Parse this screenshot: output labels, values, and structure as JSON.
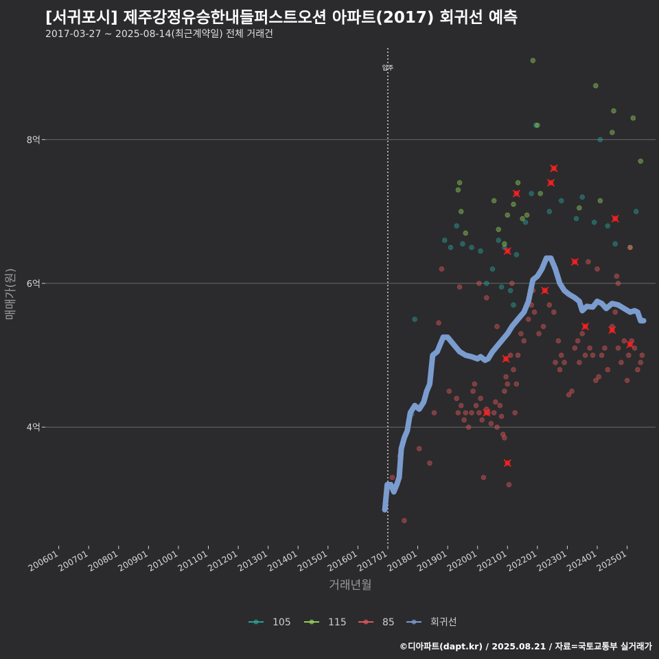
{
  "title": "[서귀포시] 제주강정유승한내들퍼스트오션 아파트(2017) 회귀선 예측",
  "subtitle": "2017-03-27 ~ 2025-08-14(최근계약일) 전체 거래건",
  "credit": "©디아파트(dapt.kr) / 2025.08.21 / 자료=국토교통부 실거래가",
  "chart_data": {
    "type": "scatter",
    "xlabel": "거래년월",
    "ylabel": "매매가(원)",
    "xlim": [
      2005.55,
      2025.95
    ],
    "ylim": [
      2.35,
      9.35
    ],
    "y_ticks": [
      {
        "value": 4,
        "label": "4억"
      },
      {
        "value": 6,
        "label": "6억"
      },
      {
        "value": 8,
        "label": "8억"
      }
    ],
    "x_ticks": [
      {
        "value": 2006,
        "label": "200601"
      },
      {
        "value": 2007,
        "label": "200701"
      },
      {
        "value": 2008,
        "label": "200801"
      },
      {
        "value": 2009,
        "label": "200901"
      },
      {
        "value": 2010,
        "label": "201001"
      },
      {
        "value": 2011,
        "label": "201101"
      },
      {
        "value": 2012,
        "label": "201201"
      },
      {
        "value": 2013,
        "label": "201301"
      },
      {
        "value": 2014,
        "label": "201401"
      },
      {
        "value": 2015,
        "label": "201501"
      },
      {
        "value": 2016,
        "label": "201601"
      },
      {
        "value": 2017,
        "label": "201701"
      },
      {
        "value": 2018,
        "label": "201801"
      },
      {
        "value": 2019,
        "label": "201901"
      },
      {
        "value": 2020,
        "label": "202001"
      },
      {
        "value": 2021,
        "label": "202101"
      },
      {
        "value": 2022,
        "label": "202201"
      },
      {
        "value": 2023,
        "label": "202301"
      },
      {
        "value": 2024,
        "label": "202401"
      },
      {
        "value": 2025,
        "label": "202501"
      }
    ],
    "annotation": {
      "x": 2017.0,
      "label": "입주"
    },
    "colors": {
      "105": "#2aa198",
      "115": "#8fd15a",
      "85": "#e0585a",
      "regression": "#7b9ccf",
      "highlight": "#ff2020"
    },
    "legend": [
      {
        "name": "105",
        "color": "#2aa198"
      },
      {
        "name": "115",
        "color": "#8fd15a"
      },
      {
        "name": "85",
        "color": "#e0585a"
      },
      {
        "name": "회귀선",
        "color": "#7b9ccf"
      }
    ],
    "series": [
      {
        "name": "105",
        "points": [
          [
            2017.8,
            4.18
          ],
          [
            2017.9,
            5.5
          ],
          [
            2018.9,
            6.6
          ],
          [
            2019.1,
            6.5
          ],
          [
            2019.3,
            6.8
          ],
          [
            2019.5,
            6.55
          ],
          [
            2019.8,
            6.5
          ],
          [
            2020.1,
            6.45
          ],
          [
            2020.3,
            6.0
          ],
          [
            2020.5,
            6.2
          ],
          [
            2020.7,
            6.6
          ],
          [
            2020.9,
            6.5
          ],
          [
            2021.1,
            5.9
          ],
          [
            2021.3,
            6.4
          ],
          [
            2021.6,
            6.85
          ],
          [
            2021.8,
            7.25
          ],
          [
            2021.95,
            8.2
          ],
          [
            2022.4,
            7.0
          ],
          [
            2022.8,
            7.15
          ],
          [
            2023.3,
            6.9
          ],
          [
            2023.5,
            7.2
          ],
          [
            2023.9,
            6.85
          ],
          [
            2024.1,
            8.0
          ],
          [
            2024.35,
            6.8
          ],
          [
            2024.6,
            6.55
          ],
          [
            2025.3,
            7.0
          ],
          [
            2021.2,
            5.7
          ],
          [
            2020.8,
            5.95
          ]
        ]
      },
      {
        "name": "115",
        "points": [
          [
            2017.75,
            4.2
          ],
          [
            2019.35,
            7.3
          ],
          [
            2019.45,
            7.0
          ],
          [
            2019.6,
            6.7
          ],
          [
            2020.55,
            7.15
          ],
          [
            2020.7,
            6.75
          ],
          [
            2020.9,
            6.55
          ],
          [
            2021.0,
            6.95
          ],
          [
            2021.2,
            7.1
          ],
          [
            2021.35,
            7.4
          ],
          [
            2021.5,
            6.9
          ],
          [
            2022.0,
            8.2
          ],
          [
            2022.1,
            7.25
          ],
          [
            2023.4,
            7.05
          ],
          [
            2023.95,
            8.75
          ],
          [
            2024.55,
            8.4
          ],
          [
            2024.5,
            8.1
          ],
          [
            2025.2,
            8.3
          ],
          [
            2025.45,
            7.7
          ],
          [
            2025.1,
            6.5
          ],
          [
            2021.85,
            9.1
          ],
          [
            2024.1,
            7.15
          ],
          [
            2019.4,
            7.4
          ],
          [
            2021.65,
            6.95
          ]
        ]
      },
      {
        "name": "85",
        "points": [
          [
            2016.9,
            2.85
          ],
          [
            2017.15,
            3.3
          ],
          [
            2017.3,
            3.2
          ],
          [
            2017.4,
            3.6
          ],
          [
            2017.55,
            2.7
          ],
          [
            2018.05,
            3.7
          ],
          [
            2018.4,
            3.5
          ],
          [
            2018.55,
            4.2
          ],
          [
            2018.7,
            5.45
          ],
          [
            2018.8,
            6.2
          ],
          [
            2019.05,
            4.5
          ],
          [
            2019.3,
            4.4
          ],
          [
            2019.35,
            4.2
          ],
          [
            2019.45,
            4.3
          ],
          [
            2019.55,
            4.1
          ],
          [
            2019.6,
            4.2
          ],
          [
            2019.7,
            4.0
          ],
          [
            2019.8,
            4.2
          ],
          [
            2019.85,
            4.5
          ],
          [
            2019.95,
            4.3
          ],
          [
            2020.05,
            4.2
          ],
          [
            2020.1,
            4.4
          ],
          [
            2020.15,
            4.1
          ],
          [
            2020.2,
            3.3
          ],
          [
            2020.3,
            4.25
          ],
          [
            2020.35,
            4.2
          ],
          [
            2020.45,
            4.05
          ],
          [
            2020.55,
            4.2
          ],
          [
            2020.6,
            4.35
          ],
          [
            2020.65,
            4.0
          ],
          [
            2020.75,
            4.3
          ],
          [
            2020.8,
            4.15
          ],
          [
            2020.85,
            3.9
          ],
          [
            2020.9,
            4.5
          ],
          [
            2020.95,
            4.7
          ],
          [
            2021.0,
            4.6
          ],
          [
            2021.05,
            3.2
          ],
          [
            2021.1,
            5.0
          ],
          [
            2021.2,
            4.8
          ],
          [
            2021.25,
            4.2
          ],
          [
            2021.3,
            4.6
          ],
          [
            2021.35,
            5.0
          ],
          [
            2021.45,
            5.3
          ],
          [
            2021.55,
            5.2
          ],
          [
            2021.7,
            5.5
          ],
          [
            2021.8,
            5.7
          ],
          [
            2021.9,
            5.6
          ],
          [
            2022.05,
            5.3
          ],
          [
            2022.2,
            5.4
          ],
          [
            2022.4,
            5.7
          ],
          [
            2022.55,
            5.6
          ],
          [
            2022.6,
            4.9
          ],
          [
            2022.7,
            5.2
          ],
          [
            2022.75,
            4.8
          ],
          [
            2022.8,
            5.0
          ],
          [
            2022.9,
            4.9
          ],
          [
            2023.05,
            4.45
          ],
          [
            2023.15,
            4.5
          ],
          [
            2023.25,
            5.1
          ],
          [
            2023.35,
            5.2
          ],
          [
            2023.4,
            4.9
          ],
          [
            2023.5,
            5.3
          ],
          [
            2023.6,
            5.0
          ],
          [
            2023.75,
            5.1
          ],
          [
            2023.85,
            5.0
          ],
          [
            2023.95,
            4.65
          ],
          [
            2024.05,
            4.7
          ],
          [
            2024.15,
            5.0
          ],
          [
            2024.25,
            5.1
          ],
          [
            2024.35,
            4.8
          ],
          [
            2024.5,
            5.4
          ],
          [
            2024.6,
            5.6
          ],
          [
            2024.7,
            5.1
          ],
          [
            2024.8,
            4.9
          ],
          [
            2024.9,
            5.2
          ],
          [
            2025.0,
            4.65
          ],
          [
            2025.05,
            5.0
          ],
          [
            2025.15,
            5.2
          ],
          [
            2025.25,
            5.1
          ],
          [
            2025.35,
            4.8
          ],
          [
            2025.45,
            4.9
          ],
          [
            2025.5,
            5.0
          ],
          [
            2020.05,
            6.0
          ],
          [
            2020.3,
            5.8
          ],
          [
            2021.15,
            6.0
          ],
          [
            2022.25,
            6.3
          ],
          [
            2023.7,
            6.3
          ],
          [
            2024.0,
            6.2
          ],
          [
            2024.65,
            6.1
          ],
          [
            2025.1,
            6.5
          ],
          [
            2019.4,
            5.95
          ],
          [
            2020.65,
            5.4
          ],
          [
            2021.85,
            5.9
          ],
          [
            2024.7,
            6.0
          ],
          [
            2020.9,
            3.85
          ],
          [
            2019.9,
            4.6
          ]
        ]
      }
    ],
    "highlights": [
      [
        2020.3,
        4.2
      ],
      [
        2020.95,
        4.95
      ],
      [
        2021.0,
        6.45
      ],
      [
        2021.0,
        3.5
      ],
      [
        2021.3,
        7.25
      ],
      [
        2022.25,
        5.9
      ],
      [
        2022.45,
        7.4
      ],
      [
        2022.55,
        7.6
      ],
      [
        2023.25,
        6.3
      ],
      [
        2023.6,
        5.4
      ],
      [
        2024.5,
        5.35
      ],
      [
        2024.6,
        6.9
      ],
      [
        2025.1,
        5.15
      ]
    ],
    "regression": [
      [
        2016.9,
        2.85
      ],
      [
        2016.98,
        3.2
      ],
      [
        2017.1,
        3.2
      ],
      [
        2017.2,
        3.1
      ],
      [
        2017.3,
        3.2
      ],
      [
        2017.38,
        3.3
      ],
      [
        2017.45,
        3.7
      ],
      [
        2017.55,
        3.85
      ],
      [
        2017.65,
        3.95
      ],
      [
        2017.75,
        4.2
      ],
      [
        2017.9,
        4.3
      ],
      [
        2018.05,
        4.25
      ],
      [
        2018.2,
        4.35
      ],
      [
        2018.3,
        4.5
      ],
      [
        2018.4,
        4.6
      ],
      [
        2018.5,
        5.0
      ],
      [
        2018.65,
        5.05
      ],
      [
        2018.85,
        5.25
      ],
      [
        2019.0,
        5.25
      ],
      [
        2019.2,
        5.15
      ],
      [
        2019.4,
        5.05
      ],
      [
        2019.6,
        5.0
      ],
      [
        2019.8,
        4.98
      ],
      [
        2020.0,
        4.95
      ],
      [
        2020.1,
        4.98
      ],
      [
        2020.25,
        4.93
      ],
      [
        2020.35,
        4.95
      ],
      [
        2020.5,
        5.05
      ],
      [
        2020.7,
        5.15
      ],
      [
        2020.9,
        5.25
      ],
      [
        2021.0,
        5.3
      ],
      [
        2021.15,
        5.4
      ],
      [
        2021.35,
        5.5
      ],
      [
        2021.55,
        5.6
      ],
      [
        2021.7,
        5.75
      ],
      [
        2021.85,
        6.05
      ],
      [
        2022.0,
        6.1
      ],
      [
        2022.15,
        6.2
      ],
      [
        2022.3,
        6.35
      ],
      [
        2022.45,
        6.35
      ],
      [
        2022.6,
        6.2
      ],
      [
        2022.75,
        6.0
      ],
      [
        2022.9,
        5.9
      ],
      [
        2023.05,
        5.85
      ],
      [
        2023.25,
        5.8
      ],
      [
        2023.4,
        5.75
      ],
      [
        2023.5,
        5.62
      ],
      [
        2023.65,
        5.68
      ],
      [
        2023.85,
        5.67
      ],
      [
        2024.0,
        5.75
      ],
      [
        2024.15,
        5.72
      ],
      [
        2024.3,
        5.65
      ],
      [
        2024.5,
        5.72
      ],
      [
        2024.7,
        5.7
      ],
      [
        2024.9,
        5.65
      ],
      [
        2025.1,
        5.6
      ],
      [
        2025.25,
        5.62
      ],
      [
        2025.35,
        5.6
      ],
      [
        2025.45,
        5.48
      ],
      [
        2025.55,
        5.48
      ]
    ]
  }
}
